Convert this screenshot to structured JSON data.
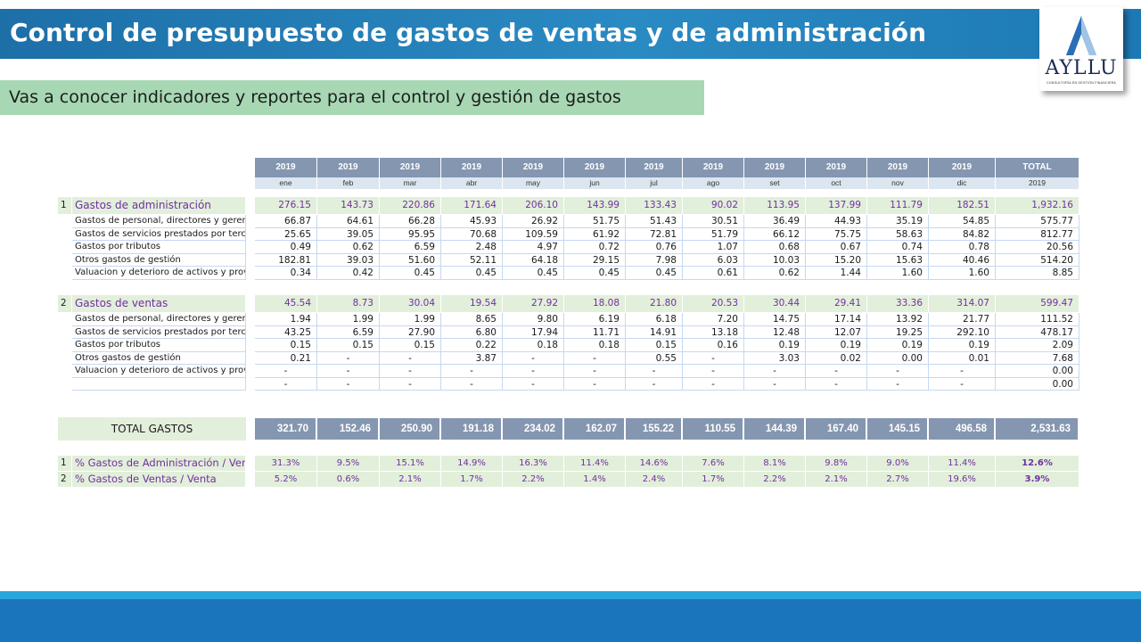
{
  "header": {
    "title": "Control de presupuesto de gastos de ventas y de administración",
    "logo_word": "AYLLU",
    "logo_sub": "CONSULTORÍA EN GESTIÓN FINANCIERA",
    "subtitle": "Vas a conocer indicadores y reportes para el control y gestión de gastos"
  },
  "table": {
    "years": [
      "2019",
      "2019",
      "2019",
      "2019",
      "2019",
      "2019",
      "2019",
      "2019",
      "2019",
      "2019",
      "2019",
      "2019",
      "TOTAL"
    ],
    "months": [
      "ene",
      "feb",
      "mar",
      "abr",
      "may",
      "jun",
      "jul",
      "ago",
      "set",
      "oct",
      "nov",
      "dic",
      "2019"
    ],
    "sections": [
      {
        "num": "1",
        "label": "Gastos de administración",
        "values": [
          "276.15",
          "143.73",
          "220.86",
          "171.64",
          "206.10",
          "143.99",
          "133.43",
          "90.02",
          "113.95",
          "137.99",
          "111.79",
          "182.51",
          "1,932.16"
        ],
        "rows": [
          {
            "label": "Gastos de personal, directores y gerentes",
            "values": [
              "66.87",
              "64.61",
              "66.28",
              "45.93",
              "26.92",
              "51.75",
              "51.43",
              "30.51",
              "36.49",
              "44.93",
              "35.19",
              "54.85",
              "575.77"
            ]
          },
          {
            "label": "Gastos de servicios prestados por terceros",
            "values": [
              "25.65",
              "39.05",
              "95.95",
              "70.68",
              "109.59",
              "61.92",
              "72.81",
              "51.79",
              "66.12",
              "75.75",
              "58.63",
              "84.82",
              "812.77"
            ]
          },
          {
            "label": "Gastos por tributos",
            "values": [
              "0.49",
              "0.62",
              "6.59",
              "2.48",
              "4.97",
              "0.72",
              "0.76",
              "1.07",
              "0.68",
              "0.67",
              "0.74",
              "0.78",
              "20.56"
            ]
          },
          {
            "label": "Otros gastos de gestión",
            "values": [
              "182.81",
              "39.03",
              "51.60",
              "52.11",
              "64.18",
              "29.15",
              "7.98",
              "6.03",
              "10.03",
              "15.20",
              "15.63",
              "40.46",
              "514.20"
            ]
          },
          {
            "label": "Valuacion y deterioro de activos y provisiones",
            "values": [
              "0.34",
              "0.42",
              "0.45",
              "0.45",
              "0.45",
              "0.45",
              "0.45",
              "0.61",
              "0.62",
              "1.44",
              "1.60",
              "1.60",
              "8.85"
            ]
          }
        ]
      },
      {
        "num": "2",
        "label": "Gastos de ventas",
        "values": [
          "45.54",
          "8.73",
          "30.04",
          "19.54",
          "27.92",
          "18.08",
          "21.80",
          "20.53",
          "30.44",
          "29.41",
          "33.36",
          "314.07",
          "599.47"
        ],
        "rows": [
          {
            "label": "Gastos de personal, directores y gerentes",
            "values": [
              "1.94",
              "1.99",
              "1.99",
              "8.65",
              "9.80",
              "6.19",
              "6.18",
              "7.20",
              "14.75",
              "17.14",
              "13.92",
              "21.77",
              "111.52"
            ]
          },
          {
            "label": "Gastos de servicios prestados por terceros",
            "values": [
              "43.25",
              "6.59",
              "27.90",
              "6.80",
              "17.94",
              "11.71",
              "14.91",
              "13.18",
              "12.48",
              "12.07",
              "19.25",
              "292.10",
              "478.17"
            ]
          },
          {
            "label": "Gastos por tributos",
            "values": [
              "0.15",
              "0.15",
              "0.15",
              "0.22",
              "0.18",
              "0.18",
              "0.15",
              "0.16",
              "0.19",
              "0.19",
              "0.19",
              "0.19",
              "2.09"
            ]
          },
          {
            "label": "Otros gastos de gestión",
            "values": [
              "0.21",
              "-",
              "-",
              "3.87",
              "-",
              "-",
              "0.55",
              "-",
              "3.03",
              "0.02",
              "0.00",
              "0.01",
              "7.68"
            ]
          },
          {
            "label": "Valuacion y deterioro de activos y provisiones",
            "values": [
              "-",
              "-",
              "-",
              "-",
              "-",
              "-",
              "-",
              "-",
              "-",
              "-",
              "-",
              "-",
              "0.00"
            ]
          },
          {
            "label": "",
            "values": [
              "-",
              "-",
              "-",
              "-",
              "-",
              "-",
              "-",
              "-",
              "-",
              "-",
              "-",
              "-",
              "0.00"
            ]
          }
        ]
      }
    ],
    "total": {
      "label": "TOTAL GASTOS",
      "values": [
        "321.70",
        "152.46",
        "250.90",
        "191.18",
        "234.02",
        "162.07",
        "155.22",
        "110.55",
        "144.39",
        "167.40",
        "145.15",
        "496.58",
        "2,531.63"
      ]
    },
    "ratios": [
      {
        "num": "1",
        "label": "% Gastos de Administración / Venta",
        "values": [
          "31.3%",
          "9.5%",
          "15.1%",
          "14.9%",
          "16.3%",
          "11.4%",
          "14.6%",
          "7.6%",
          "8.1%",
          "9.8%",
          "9.0%",
          "11.4%",
          "12.6%"
        ]
      },
      {
        "num": "2",
        "label": "% Gastos de Ventas / Venta",
        "values": [
          "5.2%",
          "0.6%",
          "2.1%",
          "1.7%",
          "2.2%",
          "1.4%",
          "2.4%",
          "1.7%",
          "2.2%",
          "2.1%",
          "2.7%",
          "19.6%",
          "3.9%"
        ]
      }
    ]
  }
}
